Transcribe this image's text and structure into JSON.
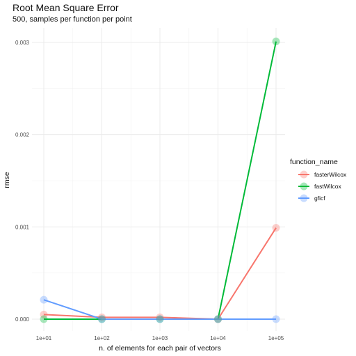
{
  "chart_data": {
    "type": "line",
    "title": "Root Mean Square Error",
    "subtitle": "500, samples per function per point",
    "xlabel": "n. of elements for each pair of vectors",
    "ylabel": "rmse",
    "x": [
      10,
      100,
      1000,
      10000,
      100000
    ],
    "x_tick_labels": [
      "1e+01",
      "1e+02",
      "1e+03",
      "1e+04",
      "1e+05"
    ],
    "x_scale": "log10",
    "y_ticks": [
      0,
      0.001,
      0.002,
      0.003
    ],
    "y_tick_labels": [
      "0.000",
      "0.001",
      "0.002",
      "0.003"
    ],
    "ylim": [
      -5e-05,
      0.00305
    ],
    "grid": true,
    "legend": {
      "title": "function_name",
      "position": "right"
    },
    "series": [
      {
        "name": "fasterWilcox",
        "color": "#F8766D",
        "values": [
          5e-05,
          2e-05,
          2e-05,
          0.0,
          0.00099
        ]
      },
      {
        "name": "fastWilcox",
        "color": "#00BA38",
        "values": [
          0.0,
          0.0,
          0.0,
          0.0,
          0.00301
        ]
      },
      {
        "name": "gficf",
        "color": "#619CFF",
        "values": [
          0.00021,
          0.0,
          0.0,
          0.0,
          0.0
        ]
      }
    ]
  }
}
